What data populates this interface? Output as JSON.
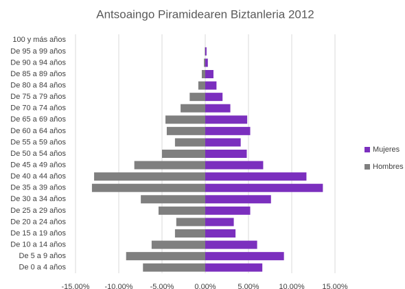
{
  "chart_data": {
    "type": "bar",
    "orientation": "horizontal",
    "stacked": true,
    "title": "Antsoaingo Piramidearen Biztanleria 2012",
    "categories": [
      "100 y más años",
      "De 95 a 99 años",
      "De 90 a 94 años",
      "De 85 a 89 años",
      "De 80 a 84 años",
      "De 75 a 79 años",
      "De 70 a 74 años",
      "De 65 a 69 años",
      "De 60 a 64 años",
      "De 55 a 59 años",
      "De 50 a 54 años",
      "De 45 a 49 años",
      "De 40 a 44 años",
      "De 35 a 39 años",
      "De 30 a 34 años",
      "De 25 a 29 años",
      "De 20 a 24 años",
      "De 15 a 19 años",
      "De 10 a 14 años",
      "De 5 a 9 años",
      "De 0 a 4 años"
    ],
    "series": [
      {
        "name": "Mujeres",
        "color": "#7b2fbe",
        "values": [
          0,
          0.15,
          0.3,
          0.95,
          1.3,
          2.0,
          2.9,
          4.85,
          5.2,
          4.1,
          4.8,
          6.7,
          11.7,
          13.6,
          7.6,
          5.2,
          3.3,
          3.5,
          6.0,
          9.1,
          6.6
        ]
      },
      {
        "name": "Hombres",
        "color": "#7f7f7f",
        "values": [
          0,
          -0.05,
          -0.15,
          -0.4,
          -0.8,
          -1.8,
          -2.85,
          -4.6,
          -4.45,
          -3.5,
          -5.0,
          -8.2,
          -12.85,
          -13.1,
          -7.45,
          -5.4,
          -3.35,
          -3.5,
          -6.2,
          -9.15,
          -7.2
        ]
      }
    ],
    "xlim": [
      -15,
      15
    ],
    "xticks": [
      {
        "value": -15,
        "label": "-15.00%"
      },
      {
        "value": -10,
        "label": "-10.00%"
      },
      {
        "value": -5,
        "label": "-5.00%"
      },
      {
        "value": 0,
        "label": "0.00%"
      },
      {
        "value": 5,
        "label": "5.00%"
      },
      {
        "value": 10,
        "label": "10.00%"
      },
      {
        "value": 15,
        "label": "15.00%"
      }
    ],
    "grid": true,
    "legend": "right"
  }
}
